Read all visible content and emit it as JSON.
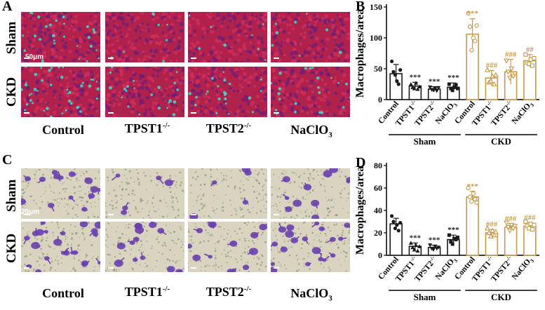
{
  "panels": {
    "a": "A",
    "b": "B",
    "c": "C",
    "d": "D"
  },
  "image_rows": [
    "Sham",
    "CKD"
  ],
  "image_columns": [
    {
      "base": "Control",
      "sup": ""
    },
    {
      "base": "TPST1",
      "sup": "-/-"
    },
    {
      "base": "TPST2",
      "sup": "-/-"
    },
    {
      "base": "NaClO",
      "sub": "3"
    }
  ],
  "scale_a": "50μm",
  "scale_c": "20μm",
  "colors": {
    "sham_bar": "#1a1a1a",
    "ckd_bar": "#c49a4a",
    "fluor_bg": "#b0214b",
    "fluor_cell": "#3ee0c8",
    "crystal_bg": "#d8d4c0",
    "crystal_cell": "#6a3fb0"
  },
  "chart_data": [
    {
      "type": "bar",
      "panel": "B",
      "ylabel": "Macrophages/area",
      "ylim": [
        0,
        150
      ],
      "yticks": [
        0,
        50,
        100,
        150
      ],
      "groups": [
        {
          "label": "Sham",
          "categories": [
            "Control",
            "TPST1-/-",
            "TPST2-/-",
            "NaClO3"
          ],
          "values": [
            42,
            22,
            17,
            20
          ],
          "errors": [
            15,
            6,
            4,
            7
          ],
          "marks": [
            "",
            "***",
            "***",
            "***"
          ]
        },
        {
          "label": "CKD",
          "categories": [
            "Control",
            "TPST1-/-",
            "TPST2-/-",
            "NaClO3"
          ],
          "values": [
            106,
            35,
            45,
            63
          ],
          "errors": [
            25,
            12,
            20,
            10
          ],
          "marks": [
            "***",
            "###",
            "###",
            "##"
          ]
        }
      ],
      "points": [
        [
          62,
          45,
          40,
          30,
          25,
          48
        ],
        [
          25,
          20,
          18,
          27,
          17,
          21
        ],
        [
          20,
          16,
          15,
          18,
          14,
          19
        ],
        [
          25,
          18,
          15,
          20,
          24,
          18
        ],
        [
          140,
          118,
          80,
          100,
          95,
          120
        ],
        [
          48,
          28,
          30,
          38,
          25,
          40
        ],
        [
          63,
          45,
          35,
          50,
          38,
          42
        ],
        [
          73,
          60,
          58,
          65,
          55,
          67
        ]
      ]
    },
    {
      "type": "bar",
      "panel": "D",
      "ylabel": "Macrophages/area",
      "ylim": [
        0,
        80
      ],
      "yticks": [
        0,
        20,
        40,
        60,
        80
      ],
      "groups": [
        {
          "label": "Sham",
          "categories": [
            "Control",
            "TPST1-/-",
            "TPST2-/-",
            "NaClO3"
          ],
          "values": [
            28,
            8,
            7,
            14
          ],
          "errors": [
            5,
            3,
            2,
            4
          ],
          "marks": [
            "",
            "***",
            "***",
            "***"
          ]
        },
        {
          "label": "CKD",
          "categories": [
            "Control",
            "TPST1-/-",
            "TPST2-/-",
            "NaClO3"
          ],
          "values": [
            52,
            20,
            25,
            26
          ],
          "errors": [
            5,
            3,
            3,
            3
          ],
          "marks": [
            "***",
            "###",
            "###",
            "###"
          ]
        }
      ],
      "points": [
        [
          35,
          30,
          24,
          27,
          22,
          29
        ],
        [
          11,
          7,
          5,
          9,
          4,
          8
        ],
        [
          9,
          6,
          5,
          8,
          6,
          7
        ],
        [
          18,
          12,
          10,
          15,
          14,
          16
        ],
        [
          60,
          52,
          48,
          55,
          50,
          47
        ],
        [
          24,
          20,
          17,
          22,
          18,
          21
        ],
        [
          29,
          25,
          22,
          27,
          24,
          26
        ],
        [
          30,
          26,
          24,
          28,
          23,
          27
        ]
      ]
    }
  ]
}
